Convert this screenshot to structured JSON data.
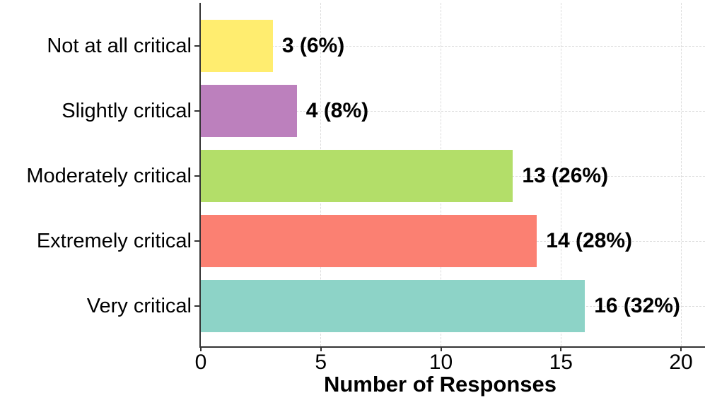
{
  "chart_data": {
    "type": "bar",
    "orientation": "horizontal",
    "title": "",
    "xlabel": "Number of Responses",
    "ylabel": "",
    "categories": [
      "Not at all critical",
      "Slightly critical",
      "Moderately critical",
      "Extremely critical",
      "Very critical"
    ],
    "values": [
      3,
      4,
      13,
      14,
      16
    ],
    "value_labels": [
      "3 (6%)",
      "4 (8%)",
      "13 (26%)",
      "14 (28%)",
      "16 (32%)"
    ],
    "bar_colors": [
      "#FFED6F",
      "#BC80BD",
      "#B3DE69",
      "#FB8072",
      "#8DD3C7"
    ],
    "x_ticks": [
      0,
      5,
      10,
      15,
      20
    ],
    "xlim": [
      0,
      21
    ],
    "grid": "major-dashed",
    "grid_color": "#dcdcdc",
    "axis_color": "#333333",
    "text_color": "#000000"
  }
}
